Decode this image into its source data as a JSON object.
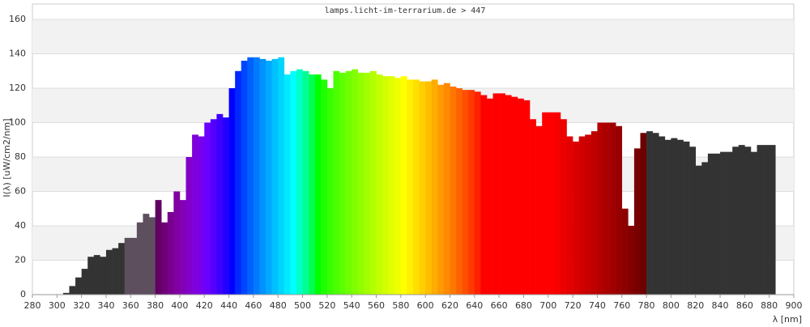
{
  "chart_data": {
    "type": "spectrum",
    "title": "lamps.licht-im-terrarium.de > 447",
    "x_label": "λ [nm]",
    "y_label": "I(λ)  [uW/cm2/nm]",
    "xlim": [
      280,
      900
    ],
    "xticks": [
      280,
      300,
      320,
      340,
      360,
      380,
      400,
      420,
      440,
      460,
      480,
      500,
      520,
      540,
      560,
      580,
      600,
      620,
      640,
      660,
      680,
      700,
      720,
      740,
      760,
      780,
      800,
      820,
      840,
      860,
      880,
      900
    ],
    "ylim": [
      0,
      160
    ],
    "yticks": [
      0,
      20,
      40,
      60,
      80,
      100,
      120,
      140,
      160
    ],
    "grid": true,
    "x": [
      300,
      305,
      310,
      315,
      320,
      325,
      330,
      335,
      340,
      345,
      350,
      355,
      360,
      365,
      370,
      375,
      380,
      385,
      390,
      395,
      400,
      405,
      410,
      415,
      420,
      425,
      430,
      435,
      440,
      445,
      450,
      455,
      460,
      465,
      470,
      475,
      480,
      485,
      490,
      495,
      500,
      505,
      510,
      515,
      520,
      525,
      530,
      535,
      540,
      545,
      550,
      555,
      560,
      565,
      570,
      575,
      580,
      585,
      590,
      595,
      600,
      605,
      610,
      615,
      620,
      625,
      630,
      635,
      640,
      645,
      650,
      655,
      660,
      665,
      670,
      675,
      680,
      685,
      690,
      695,
      700,
      705,
      710,
      715,
      720,
      725,
      730,
      735,
      740,
      745,
      750,
      755,
      760,
      765,
      770,
      775,
      780,
      785,
      790,
      795,
      800,
      805,
      810,
      815,
      820,
      825,
      830,
      835,
      840,
      845,
      850,
      855,
      860,
      865,
      870,
      875,
      880
    ],
    "values": [
      0,
      1,
      5,
      10,
      15,
      22,
      23,
      22,
      26,
      27,
      30,
      33,
      33,
      42,
      47,
      45,
      55,
      42,
      48,
      60,
      55,
      80,
      93,
      92,
      100,
      102,
      105,
      103,
      120,
      130,
      136,
      138,
      138,
      137,
      136,
      137,
      138,
      128,
      130,
      131,
      130,
      128,
      128,
      125,
      120,
      130,
      129,
      130,
      131,
      129,
      129,
      130,
      128,
      127,
      127,
      126,
      127,
      125,
      125,
      124,
      124,
      125,
      122,
      123,
      121,
      120,
      119,
      119,
      118,
      116,
      114,
      117,
      117,
      116,
      115,
      114,
      113,
      102,
      98,
      106,
      106,
      106,
      102,
      92,
      89,
      92,
      93,
      95,
      100,
      100,
      100,
      98,
      50,
      40,
      85,
      94,
      95,
      94,
      92,
      90,
      91,
      90,
      89,
      86,
      75,
      77,
      82,
      82,
      83,
      83,
      86,
      87,
      86,
      83,
      87,
      87,
      87
    ]
  }
}
